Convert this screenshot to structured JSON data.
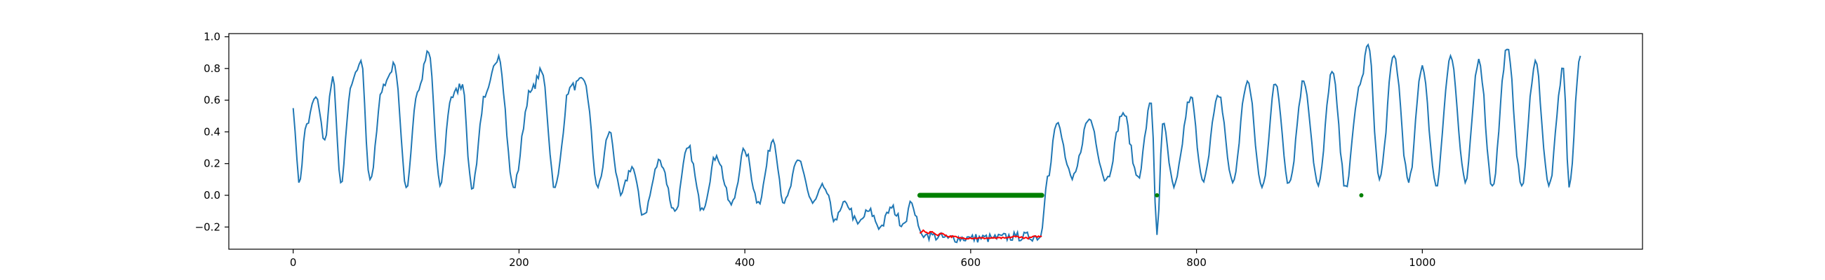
{
  "chart_data": {
    "type": "line",
    "title": "",
    "xlabel": "",
    "ylabel": "",
    "xlim": [
      -57,
      1195
    ],
    "ylim": [
      -0.34,
      1.02
    ],
    "grid": false,
    "legend": "none",
    "x_ticks": [
      0,
      200,
      400,
      600,
      800,
      1000
    ],
    "y_ticks": [
      -0.2,
      0.0,
      0.2,
      0.4,
      0.6,
      0.8,
      1.0
    ],
    "x_tick_labels": [
      "0",
      "200",
      "400",
      "600",
      "800",
      "1000"
    ],
    "y_tick_labels": [
      "−0.2",
      "0.0",
      "0.2",
      "0.4",
      "0.6",
      "0.8",
      "1.0"
    ],
    "series": [
      {
        "role": "signal",
        "color": "#1f77b4",
        "x_start": 0,
        "x_end": 1140,
        "anchors": [
          [
            0,
            0.55
          ],
          [
            5,
            0.08
          ],
          [
            12,
            0.45
          ],
          [
            20,
            0.62
          ],
          [
            28,
            0.35
          ],
          [
            35,
            0.75
          ],
          [
            42,
            0.08
          ],
          [
            52,
            0.7
          ],
          [
            60,
            0.85
          ],
          [
            68,
            0.1
          ],
          [
            80,
            0.7
          ],
          [
            90,
            0.82
          ],
          [
            100,
            0.05
          ],
          [
            110,
            0.65
          ],
          [
            120,
            0.9
          ],
          [
            130,
            0.06
          ],
          [
            140,
            0.62
          ],
          [
            150,
            0.7
          ],
          [
            158,
            0.04
          ],
          [
            170,
            0.62
          ],
          [
            182,
            0.88
          ],
          [
            195,
            0.05
          ],
          [
            210,
            0.65
          ],
          [
            220,
            0.78
          ],
          [
            232,
            0.05
          ],
          [
            245,
            0.68
          ],
          [
            258,
            0.72
          ],
          [
            270,
            0.05
          ],
          [
            280,
            0.4
          ],
          [
            290,
            0.0
          ],
          [
            300,
            0.18
          ],
          [
            310,
            -0.12
          ],
          [
            325,
            0.22
          ],
          [
            338,
            -0.1
          ],
          [
            350,
            0.3
          ],
          [
            362,
            -0.08
          ],
          [
            375,
            0.25
          ],
          [
            388,
            -0.06
          ],
          [
            400,
            0.28
          ],
          [
            412,
            -0.04
          ],
          [
            425,
            0.35
          ],
          [
            435,
            -0.05
          ],
          [
            448,
            0.22
          ],
          [
            460,
            -0.05
          ],
          [
            470,
            0.05
          ],
          [
            480,
            -0.15
          ],
          [
            490,
            -0.05
          ],
          [
            500,
            -0.18
          ],
          [
            510,
            -0.1
          ],
          [
            520,
            -0.2
          ],
          [
            530,
            -0.08
          ],
          [
            540,
            -0.18
          ],
          [
            548,
            -0.05
          ],
          [
            555,
            -0.22
          ],
          [
            560,
            -0.25
          ],
          [
            580,
            -0.27
          ],
          [
            600,
            -0.27
          ],
          [
            620,
            -0.27
          ],
          [
            640,
            -0.26
          ],
          [
            662,
            -0.26
          ],
          [
            668,
            0.12
          ],
          [
            676,
            0.45
          ],
          [
            690,
            0.1
          ],
          [
            705,
            0.48
          ],
          [
            720,
            0.1
          ],
          [
            735,
            0.52
          ],
          [
            748,
            0.12
          ],
          [
            760,
            0.58
          ],
          [
            765,
            -0.25
          ],
          [
            770,
            0.45
          ],
          [
            780,
            0.05
          ],
          [
            795,
            0.62
          ],
          [
            805,
            0.1
          ],
          [
            820,
            0.62
          ],
          [
            832,
            0.08
          ],
          [
            845,
            0.72
          ],
          [
            858,
            0.05
          ],
          [
            870,
            0.7
          ],
          [
            882,
            0.08
          ],
          [
            895,
            0.72
          ],
          [
            908,
            0.06
          ],
          [
            920,
            0.78
          ],
          [
            932,
            0.06
          ],
          [
            945,
            0.7
          ],
          [
            952,
            0.95
          ],
          [
            962,
            0.1
          ],
          [
            975,
            0.88
          ],
          [
            988,
            0.08
          ],
          [
            1000,
            0.82
          ],
          [
            1012,
            0.06
          ],
          [
            1025,
            0.88
          ],
          [
            1038,
            0.08
          ],
          [
            1050,
            0.86
          ],
          [
            1062,
            0.06
          ],
          [
            1075,
            0.92
          ],
          [
            1088,
            0.06
          ],
          [
            1100,
            0.85
          ],
          [
            1112,
            0.06
          ],
          [
            1125,
            0.8
          ],
          [
            1130,
            0.05
          ],
          [
            1140,
            0.88
          ]
        ]
      },
      {
        "role": "imputed-segment",
        "color": "#ff0000",
        "x_start": 555,
        "x_end": 663,
        "points": [
          [
            555,
            -0.24
          ],
          [
            558,
            -0.22
          ],
          [
            562,
            -0.24
          ],
          [
            566,
            -0.23
          ],
          [
            570,
            -0.25
          ],
          [
            575,
            -0.24
          ],
          [
            580,
            -0.26
          ],
          [
            585,
            -0.26
          ],
          [
            590,
            -0.27
          ],
          [
            600,
            -0.27
          ],
          [
            610,
            -0.27
          ],
          [
            620,
            -0.27
          ],
          [
            630,
            -0.27
          ],
          [
            640,
            -0.26
          ],
          [
            650,
            -0.27
          ],
          [
            658,
            -0.26
          ],
          [
            663,
            -0.26
          ]
        ]
      },
      {
        "role": "marker-band",
        "color": "#008000",
        "y": 0.0,
        "x_start": 555,
        "x_end": 663
      },
      {
        "role": "marker-points",
        "color": "#008000",
        "points": [
          [
            765,
            0.0
          ],
          [
            946,
            0.0
          ]
        ]
      }
    ]
  }
}
